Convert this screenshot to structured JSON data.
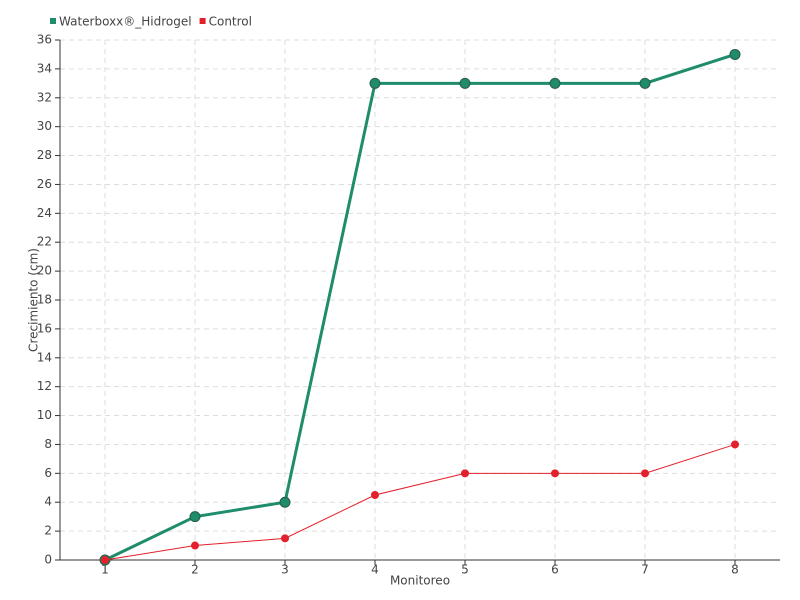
{
  "chart_data": {
    "type": "line",
    "x_label": "Monitoreo",
    "y_label": "Crecimiento (cm)",
    "categories": [
      "1",
      "2",
      "3",
      "4",
      "5",
      "6",
      "7",
      "8"
    ],
    "series": [
      {
        "name": "Waterboxx®_Hidrogel",
        "color": "#1f8c6c",
        "values": [
          0,
          3,
          4,
          33,
          33,
          33,
          33,
          35
        ]
      },
      {
        "name": "Control",
        "color": "#e3202b",
        "values": [
          0,
          1,
          1.5,
          4.5,
          6,
          6,
          6,
          8
        ]
      }
    ],
    "ylim": [
      0,
      36
    ],
    "yticks": [
      0,
      2,
      4,
      6,
      8,
      10,
      12,
      14,
      16,
      18,
      20,
      22,
      24,
      26,
      28,
      30,
      32,
      34,
      36
    ],
    "grid": true,
    "legend": "top-left"
  }
}
